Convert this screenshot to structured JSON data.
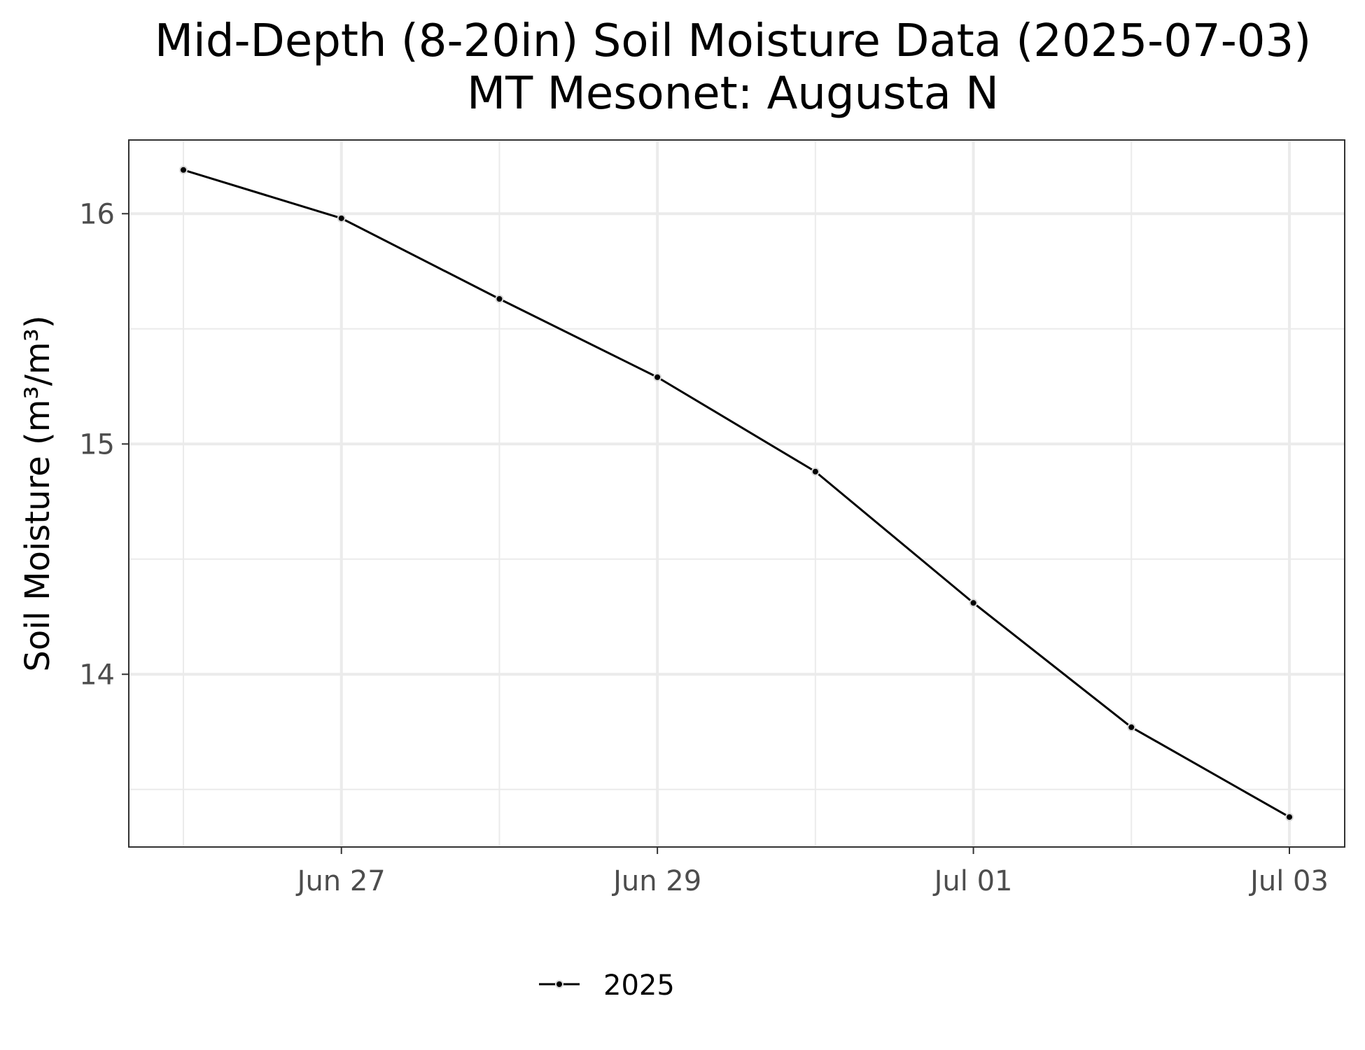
{
  "chart_data": {
    "type": "line",
    "title": "Mid-Depth (8-20in) Soil Moisture Data (2025-07-03)",
    "subtitle": "MT Mesonet: Augusta N",
    "xlabel": "",
    "ylabel": "Soil Moisture (m³/m³)",
    "x": [
      "2025-06-26",
      "2025-06-27",
      "2025-06-28",
      "2025-06-29",
      "2025-06-30",
      "2025-07-01",
      "2025-07-02",
      "2025-07-03"
    ],
    "x_ticks": [
      {
        "date": "2025-06-27",
        "label": "Jun 27"
      },
      {
        "date": "2025-06-29",
        "label": "Jun 29"
      },
      {
        "date": "2025-07-01",
        "label": "Jul 01"
      },
      {
        "date": "2025-07-03",
        "label": "Jul 03"
      }
    ],
    "y_ticks": [
      14,
      15,
      16
    ],
    "y_minor_ticks": [
      13.5,
      14.5,
      15.5
    ],
    "ylim": [
      13.25,
      16.32
    ],
    "series": [
      {
        "name": "2025",
        "values": [
          16.19,
          15.98,
          15.63,
          15.29,
          14.88,
          14.31,
          13.77,
          13.38
        ],
        "color": "#000000"
      }
    ],
    "grid": true,
    "legend_position": "bottom"
  }
}
